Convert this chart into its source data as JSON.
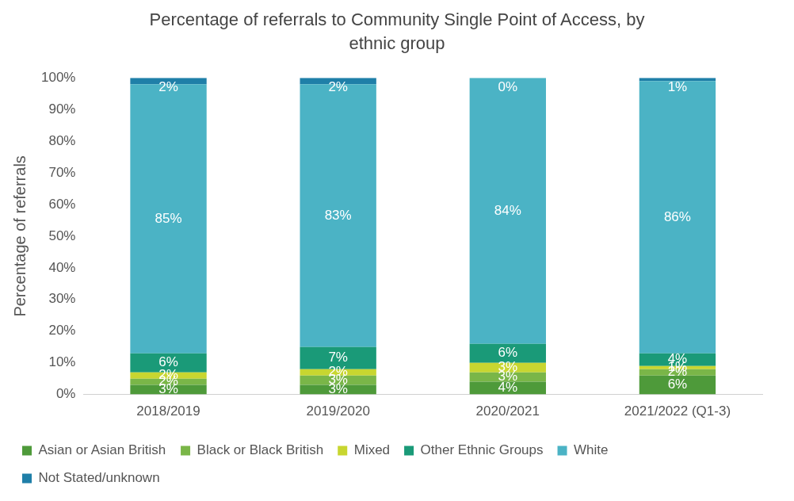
{
  "chart_data": {
    "type": "bar",
    "title": "Percentage of referrals to Community Single Point of Access, by ethnic group",
    "ylabel": "Percentage of referrals",
    "categories": [
      "2018/2019",
      "2019/2020",
      "2020/2021",
      "2021/2022 (Q1-3)"
    ],
    "stacked": true,
    "series": [
      {
        "name": "Asian or Asian British",
        "color": "#4e9a3a",
        "values": [
          3,
          3,
          4,
          6
        ],
        "value_labels": [
          "3%",
          "3%",
          "4%",
          "6%"
        ]
      },
      {
        "name": "Black or Black British",
        "color": "#7ab648",
        "values": [
          2,
          3,
          3,
          2
        ],
        "value_labels": [
          "2%",
          "3%",
          "3%",
          "2%"
        ]
      },
      {
        "name": "Mixed",
        "color": "#c8d630",
        "values": [
          2,
          2,
          3,
          1
        ],
        "value_labels": [
          "2%",
          "2%",
          "3%",
          "1%"
        ]
      },
      {
        "name": "Other Ethnic Groups",
        "color": "#1a9a78",
        "values": [
          6,
          7,
          6,
          4
        ],
        "value_labels": [
          "6%",
          "7%",
          "6%",
          "4%"
        ]
      },
      {
        "name": "White",
        "color": "#4bb3c5",
        "values": [
          85,
          83,
          84,
          86
        ],
        "value_labels": [
          "85%",
          "83%",
          "84%",
          "86%"
        ]
      },
      {
        "name": "Not Stated/unknown",
        "color": "#1f7fa8",
        "values": [
          2,
          2,
          0,
          1
        ],
        "value_labels": [
          "2%",
          "2%",
          "0%",
          "1%"
        ]
      }
    ],
    "ylim": [
      0,
      100
    ],
    "yticks": [
      {
        "value": 0,
        "label": "0%"
      },
      {
        "value": 10,
        "label": "10%"
      },
      {
        "value": 20,
        "label": "20%"
      },
      {
        "value": 30,
        "label": "30%"
      },
      {
        "value": 40,
        "label": "40%"
      },
      {
        "value": 50,
        "label": "50%"
      },
      {
        "value": 60,
        "label": "60%"
      },
      {
        "value": 70,
        "label": "70%"
      },
      {
        "value": 80,
        "label": "80%"
      },
      {
        "value": 90,
        "label": "90%"
      },
      {
        "value": 100,
        "label": "100%"
      }
    ],
    "grid": false,
    "legend": "bottom"
  }
}
